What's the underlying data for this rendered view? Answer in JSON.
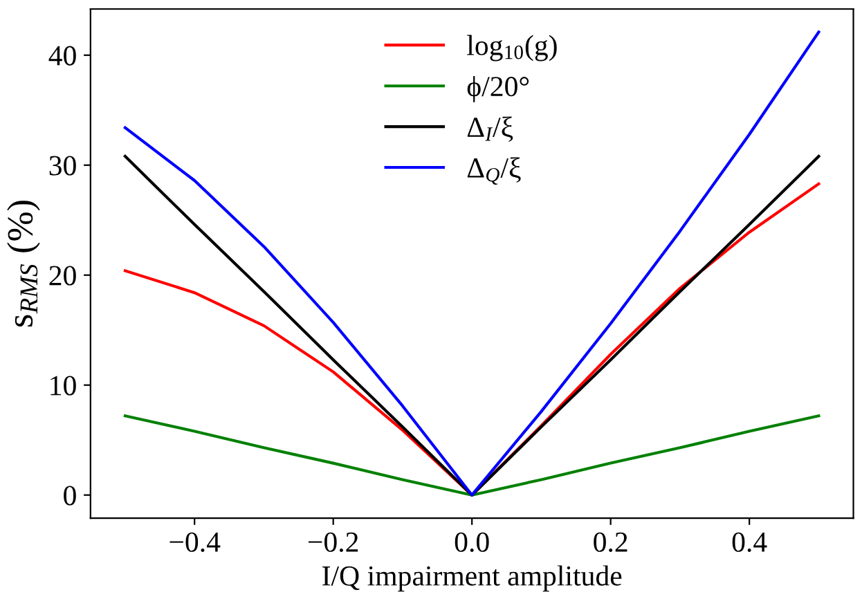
{
  "chart_data": {
    "type": "line",
    "xlabel": "I/Q impairment amplitude",
    "ylabel": "s$_{RMS}$ (%)",
    "xlim": [
      -0.55,
      0.55
    ],
    "ylim": [
      -2.1,
      44.2
    ],
    "xticks": [
      {
        "value": -0.4,
        "label": "−0.4"
      },
      {
        "value": -0.2,
        "label": "−0.2"
      },
      {
        "value": 0.0,
        "label": "0.0"
      },
      {
        "value": 0.2,
        "label": "0.2"
      },
      {
        "value": 0.4,
        "label": "0.4"
      }
    ],
    "yticks": [
      0,
      10,
      20,
      30,
      40
    ],
    "grid": false,
    "legend": "top",
    "marker": "none",
    "line_style": "solid",
    "x": [
      -0.5,
      -0.4,
      -0.3,
      -0.2,
      -0.1,
      0.0,
      0.1,
      0.2,
      0.3,
      0.4,
      0.5
    ],
    "series": [
      {
        "name": "log$_{10}$(g)",
        "color": "#ff0000",
        "values": [
          20.4,
          18.4,
          15.4,
          11.2,
          5.9,
          0,
          6.3,
          12.8,
          18.8,
          23.9,
          28.3
        ]
      },
      {
        "name": "ϕ/20°",
        "color": "#008000",
        "values": [
          7.2,
          5.8,
          4.3,
          2.9,
          1.4,
          0,
          1.4,
          2.9,
          4.3,
          5.8,
          7.2
        ]
      },
      {
        "name": "Δ$_{I}$/ξ",
        "color": "#000000",
        "values": [
          30.8,
          24.6,
          18.5,
          12.3,
          6.2,
          0,
          6.2,
          12.3,
          18.5,
          24.6,
          30.8
        ]
      },
      {
        "name": "Δ$_{Q}$/ξ",
        "color": "#0000ff",
        "values": [
          33.4,
          28.6,
          22.6,
          15.7,
          8.1,
          0,
          7.6,
          15.6,
          24.0,
          32.8,
          42.1
        ]
      }
    ]
  }
}
